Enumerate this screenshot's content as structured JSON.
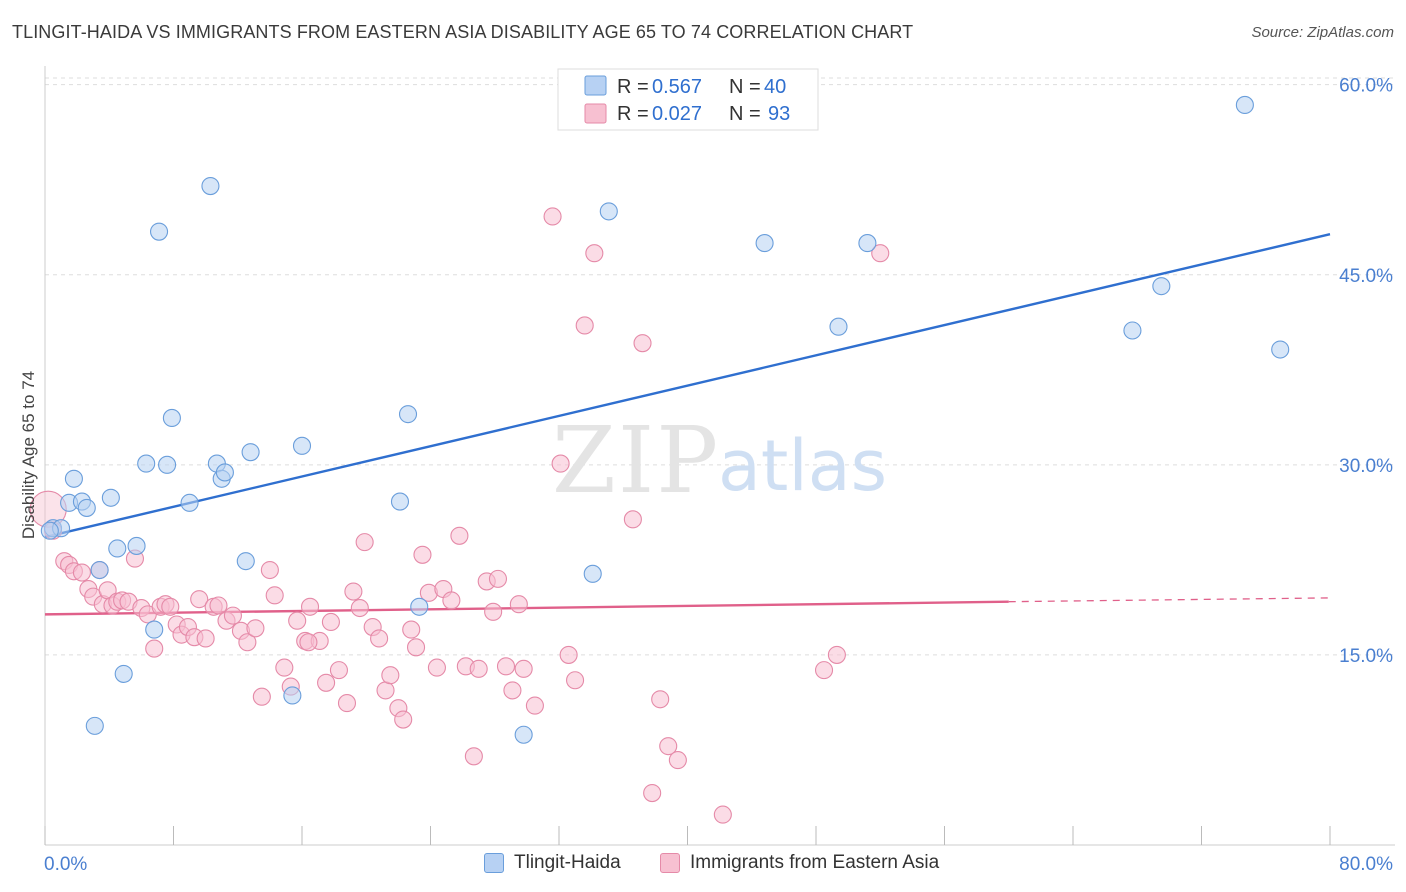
{
  "title": "TLINGIT-HAIDA VS IMMIGRANTS FROM EASTERN ASIA DISABILITY AGE 65 TO 74 CORRELATION CHART",
  "source": "Source: ZipAtlas.com",
  "watermark": {
    "zip": "ZIP",
    "atlas": "atlas"
  },
  "colors": {
    "blue_fill": "#b7d1f3",
    "blue_stroke": "#6a9edb",
    "blue_line": "#2f6fcf",
    "pink_fill": "#f7c0d1",
    "pink_stroke": "#e58aa8",
    "pink_line": "#e0608a",
    "axis_label": "#4a7fd0",
    "grid": "#dddddd"
  },
  "legend_top": {
    "rows": [
      {
        "r_label": "R = ",
        "r_value": "0.567",
        "n_label": "N = ",
        "n_value": "40"
      },
      {
        "r_label": "R = ",
        "r_value": "0.027",
        "n_label": "N = ",
        "n_value": "93"
      }
    ]
  },
  "legend_bottom": [
    {
      "name": "Tlingit-Haida"
    },
    {
      "name": "Immigrants from Eastern Asia"
    }
  ],
  "chart_data": {
    "type": "scatter",
    "title": "TLINGIT-HAIDA VS IMMIGRANTS FROM EASTERN ASIA DISABILITY AGE 65 TO 74 CORRELATION CHART",
    "xlabel": "",
    "ylabel": "Disability Age 65 to 74",
    "xlim": [
      0,
      80
    ],
    "ylim": [
      0,
      61
    ],
    "x_tick_labels": [
      "0.0%",
      "80.0%"
    ],
    "y_ticks": [
      15,
      30,
      45,
      60
    ],
    "y_tick_labels": [
      "15.0%",
      "30.0%",
      "45.0%",
      "60.0%"
    ],
    "grid": true,
    "legend_position": "top-center",
    "series": [
      {
        "name": "Tlingit-Haida",
        "r": 0.567,
        "n": 40,
        "trend": {
          "x0": 0,
          "y0": 24.3,
          "x1": 80,
          "y1": 48.2
        },
        "points": [
          [
            0.5,
            25.0
          ],
          [
            1.5,
            27.0
          ],
          [
            1.8,
            28.9
          ],
          [
            2.3,
            27.1
          ],
          [
            2.6,
            26.6
          ],
          [
            3.1,
            9.4
          ],
          [
            3.4,
            21.7
          ],
          [
            4.1,
            27.4
          ],
          [
            4.5,
            23.4
          ],
          [
            4.9,
            13.5
          ],
          [
            5.7,
            23.6
          ],
          [
            6.3,
            30.1
          ],
          [
            6.8,
            17.0
          ],
          [
            7.1,
            48.4
          ],
          [
            7.6,
            30.0
          ],
          [
            7.9,
            33.7
          ],
          [
            9.0,
            27.0
          ],
          [
            10.3,
            52.0
          ],
          [
            10.7,
            30.1
          ],
          [
            11.0,
            28.9
          ],
          [
            11.2,
            29.4
          ],
          [
            12.5,
            22.4
          ],
          [
            12.8,
            31.0
          ],
          [
            15.4,
            11.8
          ],
          [
            16.0,
            31.5
          ],
          [
            22.1,
            27.1
          ],
          [
            22.6,
            34.0
          ],
          [
            23.3,
            18.8
          ],
          [
            29.8,
            8.7
          ],
          [
            34.1,
            21.4
          ],
          [
            35.1,
            50.0
          ],
          [
            44.8,
            47.5
          ],
          [
            49.4,
            40.9
          ],
          [
            51.2,
            47.5
          ],
          [
            67.7,
            40.6
          ],
          [
            69.5,
            44.1
          ],
          [
            74.7,
            58.4
          ],
          [
            76.9,
            39.1
          ],
          [
            1.0,
            25.0
          ],
          [
            0.3,
            24.8
          ]
        ]
      },
      {
        "name": "Immigrants from Eastern Asia",
        "r": 0.027,
        "n": 93,
        "trend": {
          "x0": 0,
          "y0": 18.2,
          "x1": 60,
          "y1": 19.2,
          "dashed_to_x": 80,
          "dashed_to_y": 19.5
        },
        "points": [
          [
            0.2,
            26.5
          ],
          [
            0.5,
            24.8
          ],
          [
            1.2,
            22.4
          ],
          [
            1.5,
            22.1
          ],
          [
            1.8,
            21.6
          ],
          [
            2.3,
            21.5
          ],
          [
            2.7,
            20.2
          ],
          [
            3.0,
            19.6
          ],
          [
            3.4,
            21.7
          ],
          [
            3.6,
            19.0
          ],
          [
            3.9,
            20.1
          ],
          [
            4.2,
            18.9
          ],
          [
            4.5,
            19.2
          ],
          [
            4.8,
            19.3
          ],
          [
            5.2,
            19.2
          ],
          [
            5.6,
            22.6
          ],
          [
            6.0,
            18.7
          ],
          [
            6.4,
            18.2
          ],
          [
            6.8,
            15.5
          ],
          [
            7.2,
            18.8
          ],
          [
            7.5,
            19.0
          ],
          [
            7.8,
            18.8
          ],
          [
            8.2,
            17.4
          ],
          [
            8.5,
            16.6
          ],
          [
            8.9,
            17.2
          ],
          [
            9.3,
            16.4
          ],
          [
            9.6,
            19.4
          ],
          [
            10.0,
            16.3
          ],
          [
            10.5,
            18.8
          ],
          [
            10.8,
            18.9
          ],
          [
            11.3,
            17.7
          ],
          [
            11.7,
            18.1
          ],
          [
            12.2,
            16.9
          ],
          [
            12.6,
            16.0
          ],
          [
            13.1,
            17.1
          ],
          [
            13.5,
            11.7
          ],
          [
            14.0,
            21.7
          ],
          [
            14.3,
            19.7
          ],
          [
            14.9,
            14.0
          ],
          [
            15.3,
            12.5
          ],
          [
            15.7,
            17.7
          ],
          [
            16.2,
            16.1
          ],
          [
            16.5,
            18.8
          ],
          [
            17.1,
            16.1
          ],
          [
            17.5,
            12.8
          ],
          [
            17.8,
            17.6
          ],
          [
            18.3,
            13.8
          ],
          [
            18.8,
            11.2
          ],
          [
            19.2,
            20.0
          ],
          [
            19.6,
            18.7
          ],
          [
            19.9,
            23.9
          ],
          [
            20.4,
            17.2
          ],
          [
            20.8,
            16.3
          ],
          [
            21.2,
            12.2
          ],
          [
            21.5,
            13.4
          ],
          [
            22.0,
            10.8
          ],
          [
            22.3,
            9.9
          ],
          [
            22.8,
            17.0
          ],
          [
            23.1,
            15.6
          ],
          [
            23.5,
            22.9
          ],
          [
            23.9,
            19.9
          ],
          [
            24.4,
            14.0
          ],
          [
            24.8,
            20.2
          ],
          [
            25.3,
            19.3
          ],
          [
            25.8,
            24.4
          ],
          [
            26.2,
            14.1
          ],
          [
            26.7,
            7.0
          ],
          [
            27.0,
            13.9
          ],
          [
            27.5,
            20.8
          ],
          [
            27.9,
            18.4
          ],
          [
            28.2,
            21.0
          ],
          [
            28.7,
            14.1
          ],
          [
            29.1,
            12.2
          ],
          [
            29.5,
            19.0
          ],
          [
            29.8,
            13.9
          ],
          [
            30.5,
            11.0
          ],
          [
            31.6,
            49.6
          ],
          [
            32.1,
            30.1
          ],
          [
            32.6,
            15.0
          ],
          [
            33.0,
            13.0
          ],
          [
            33.6,
            41.0
          ],
          [
            34.2,
            46.7
          ],
          [
            36.6,
            25.7
          ],
          [
            37.2,
            39.6
          ],
          [
            37.8,
            4.1
          ],
          [
            38.3,
            11.5
          ],
          [
            38.8,
            7.8
          ],
          [
            39.4,
            6.7
          ],
          [
            42.2,
            2.4
          ],
          [
            48.5,
            13.8
          ],
          [
            49.3,
            15.0
          ],
          [
            52.0,
            46.7
          ],
          [
            16.4,
            16.0
          ]
        ]
      }
    ]
  }
}
